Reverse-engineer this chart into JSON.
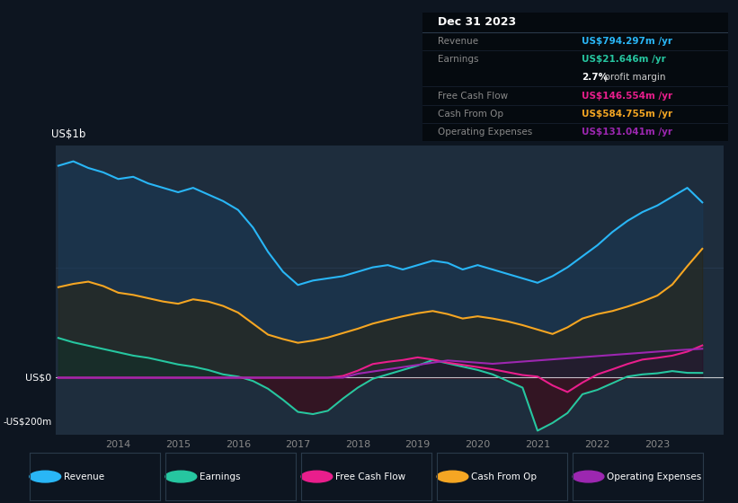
{
  "bg_color": "#0d1520",
  "plot_bg_color": "#1e2d3d",
  "colors": {
    "revenue": "#29b6f6",
    "earnings": "#26c6a0",
    "free_cash_flow": "#e91e8c",
    "cash_from_op": "#f5a623",
    "operating_expenses": "#9c27b0"
  },
  "x": [
    2013.0,
    2013.25,
    2013.5,
    2013.75,
    2014.0,
    2014.25,
    2014.5,
    2014.75,
    2015.0,
    2015.25,
    2015.5,
    2015.75,
    2016.0,
    2016.25,
    2016.5,
    2016.75,
    2017.0,
    2017.25,
    2017.5,
    2017.75,
    2018.0,
    2018.25,
    2018.5,
    2018.75,
    2019.0,
    2019.25,
    2019.5,
    2019.75,
    2020.0,
    2020.25,
    2020.5,
    2020.75,
    2021.0,
    2021.25,
    2021.5,
    2021.75,
    2022.0,
    2022.25,
    2022.5,
    2022.75,
    2023.0,
    2023.25,
    2023.5,
    2023.75
  ],
  "revenue": [
    960,
    980,
    950,
    930,
    900,
    910,
    880,
    860,
    840,
    860,
    830,
    800,
    760,
    680,
    570,
    480,
    420,
    440,
    450,
    460,
    480,
    500,
    510,
    490,
    510,
    530,
    520,
    490,
    510,
    490,
    470,
    450,
    430,
    460,
    500,
    550,
    600,
    660,
    710,
    750,
    780,
    820,
    860,
    794
  ],
  "earnings": [
    180,
    160,
    145,
    130,
    115,
    100,
    90,
    75,
    60,
    50,
    35,
    15,
    5,
    -15,
    -50,
    -100,
    -155,
    -165,
    -150,
    -95,
    -45,
    -5,
    15,
    35,
    55,
    80,
    65,
    50,
    35,
    15,
    -15,
    -45,
    -240,
    -205,
    -160,
    -75,
    -55,
    -25,
    5,
    15,
    20,
    30,
    22,
    21.6
  ],
  "free_cash_flow": [
    0,
    0,
    0,
    0,
    0,
    0,
    0,
    0,
    0,
    0,
    0,
    0,
    0,
    0,
    0,
    0,
    0,
    0,
    0,
    8,
    32,
    62,
    72,
    80,
    92,
    82,
    68,
    58,
    48,
    38,
    25,
    12,
    5,
    -35,
    -65,
    -22,
    15,
    38,
    62,
    82,
    90,
    100,
    118,
    146
  ],
  "cash_from_op": [
    410,
    425,
    435,
    415,
    385,
    375,
    360,
    345,
    335,
    355,
    345,
    325,
    295,
    245,
    195,
    175,
    158,
    168,
    182,
    202,
    222,
    245,
    262,
    278,
    292,
    302,
    288,
    268,
    278,
    268,
    255,
    238,
    218,
    198,
    228,
    268,
    288,
    302,
    322,
    345,
    372,
    422,
    505,
    584
  ],
  "operating_expenses": [
    0,
    0,
    0,
    0,
    0,
    0,
    0,
    0,
    0,
    0,
    0,
    0,
    0,
    0,
    0,
    0,
    0,
    0,
    0,
    0,
    18,
    28,
    38,
    48,
    58,
    68,
    78,
    73,
    68,
    63,
    68,
    73,
    78,
    83,
    88,
    93,
    98,
    103,
    108,
    113,
    118,
    123,
    127,
    131
  ],
  "ylim": [
    -260,
    1050
  ],
  "xlabel_years": [
    2014,
    2015,
    2016,
    2017,
    2018,
    2019,
    2020,
    2021,
    2022,
    2023
  ],
  "info_title": "Dec 31 2023",
  "info_rows": [
    {
      "label": "Revenue",
      "value": "US$794.297m /yr",
      "color": "#29b6f6",
      "has_sub": false
    },
    {
      "label": "Earnings",
      "value": "US$21.646m /yr",
      "color": "#26c6a0",
      "has_sub": true,
      "sub_bold": "2.7%",
      "sub_rest": " profit margin"
    },
    {
      "label": "Free Cash Flow",
      "value": "US$146.554m /yr",
      "color": "#e91e8c",
      "has_sub": false
    },
    {
      "label": "Cash From Op",
      "value": "US$584.755m /yr",
      "color": "#f5a623",
      "has_sub": false
    },
    {
      "label": "Operating Expenses",
      "value": "US$131.041m /yr",
      "color": "#9c27b0",
      "has_sub": false
    }
  ],
  "legend_items": [
    {
      "label": "Revenue",
      "color": "#29b6f6"
    },
    {
      "label": "Earnings",
      "color": "#26c6a0"
    },
    {
      "label": "Free Cash Flow",
      "color": "#e91e8c"
    },
    {
      "label": "Cash From Op",
      "color": "#f5a623"
    },
    {
      "label": "Operating Expenses",
      "color": "#9c27b0"
    }
  ]
}
